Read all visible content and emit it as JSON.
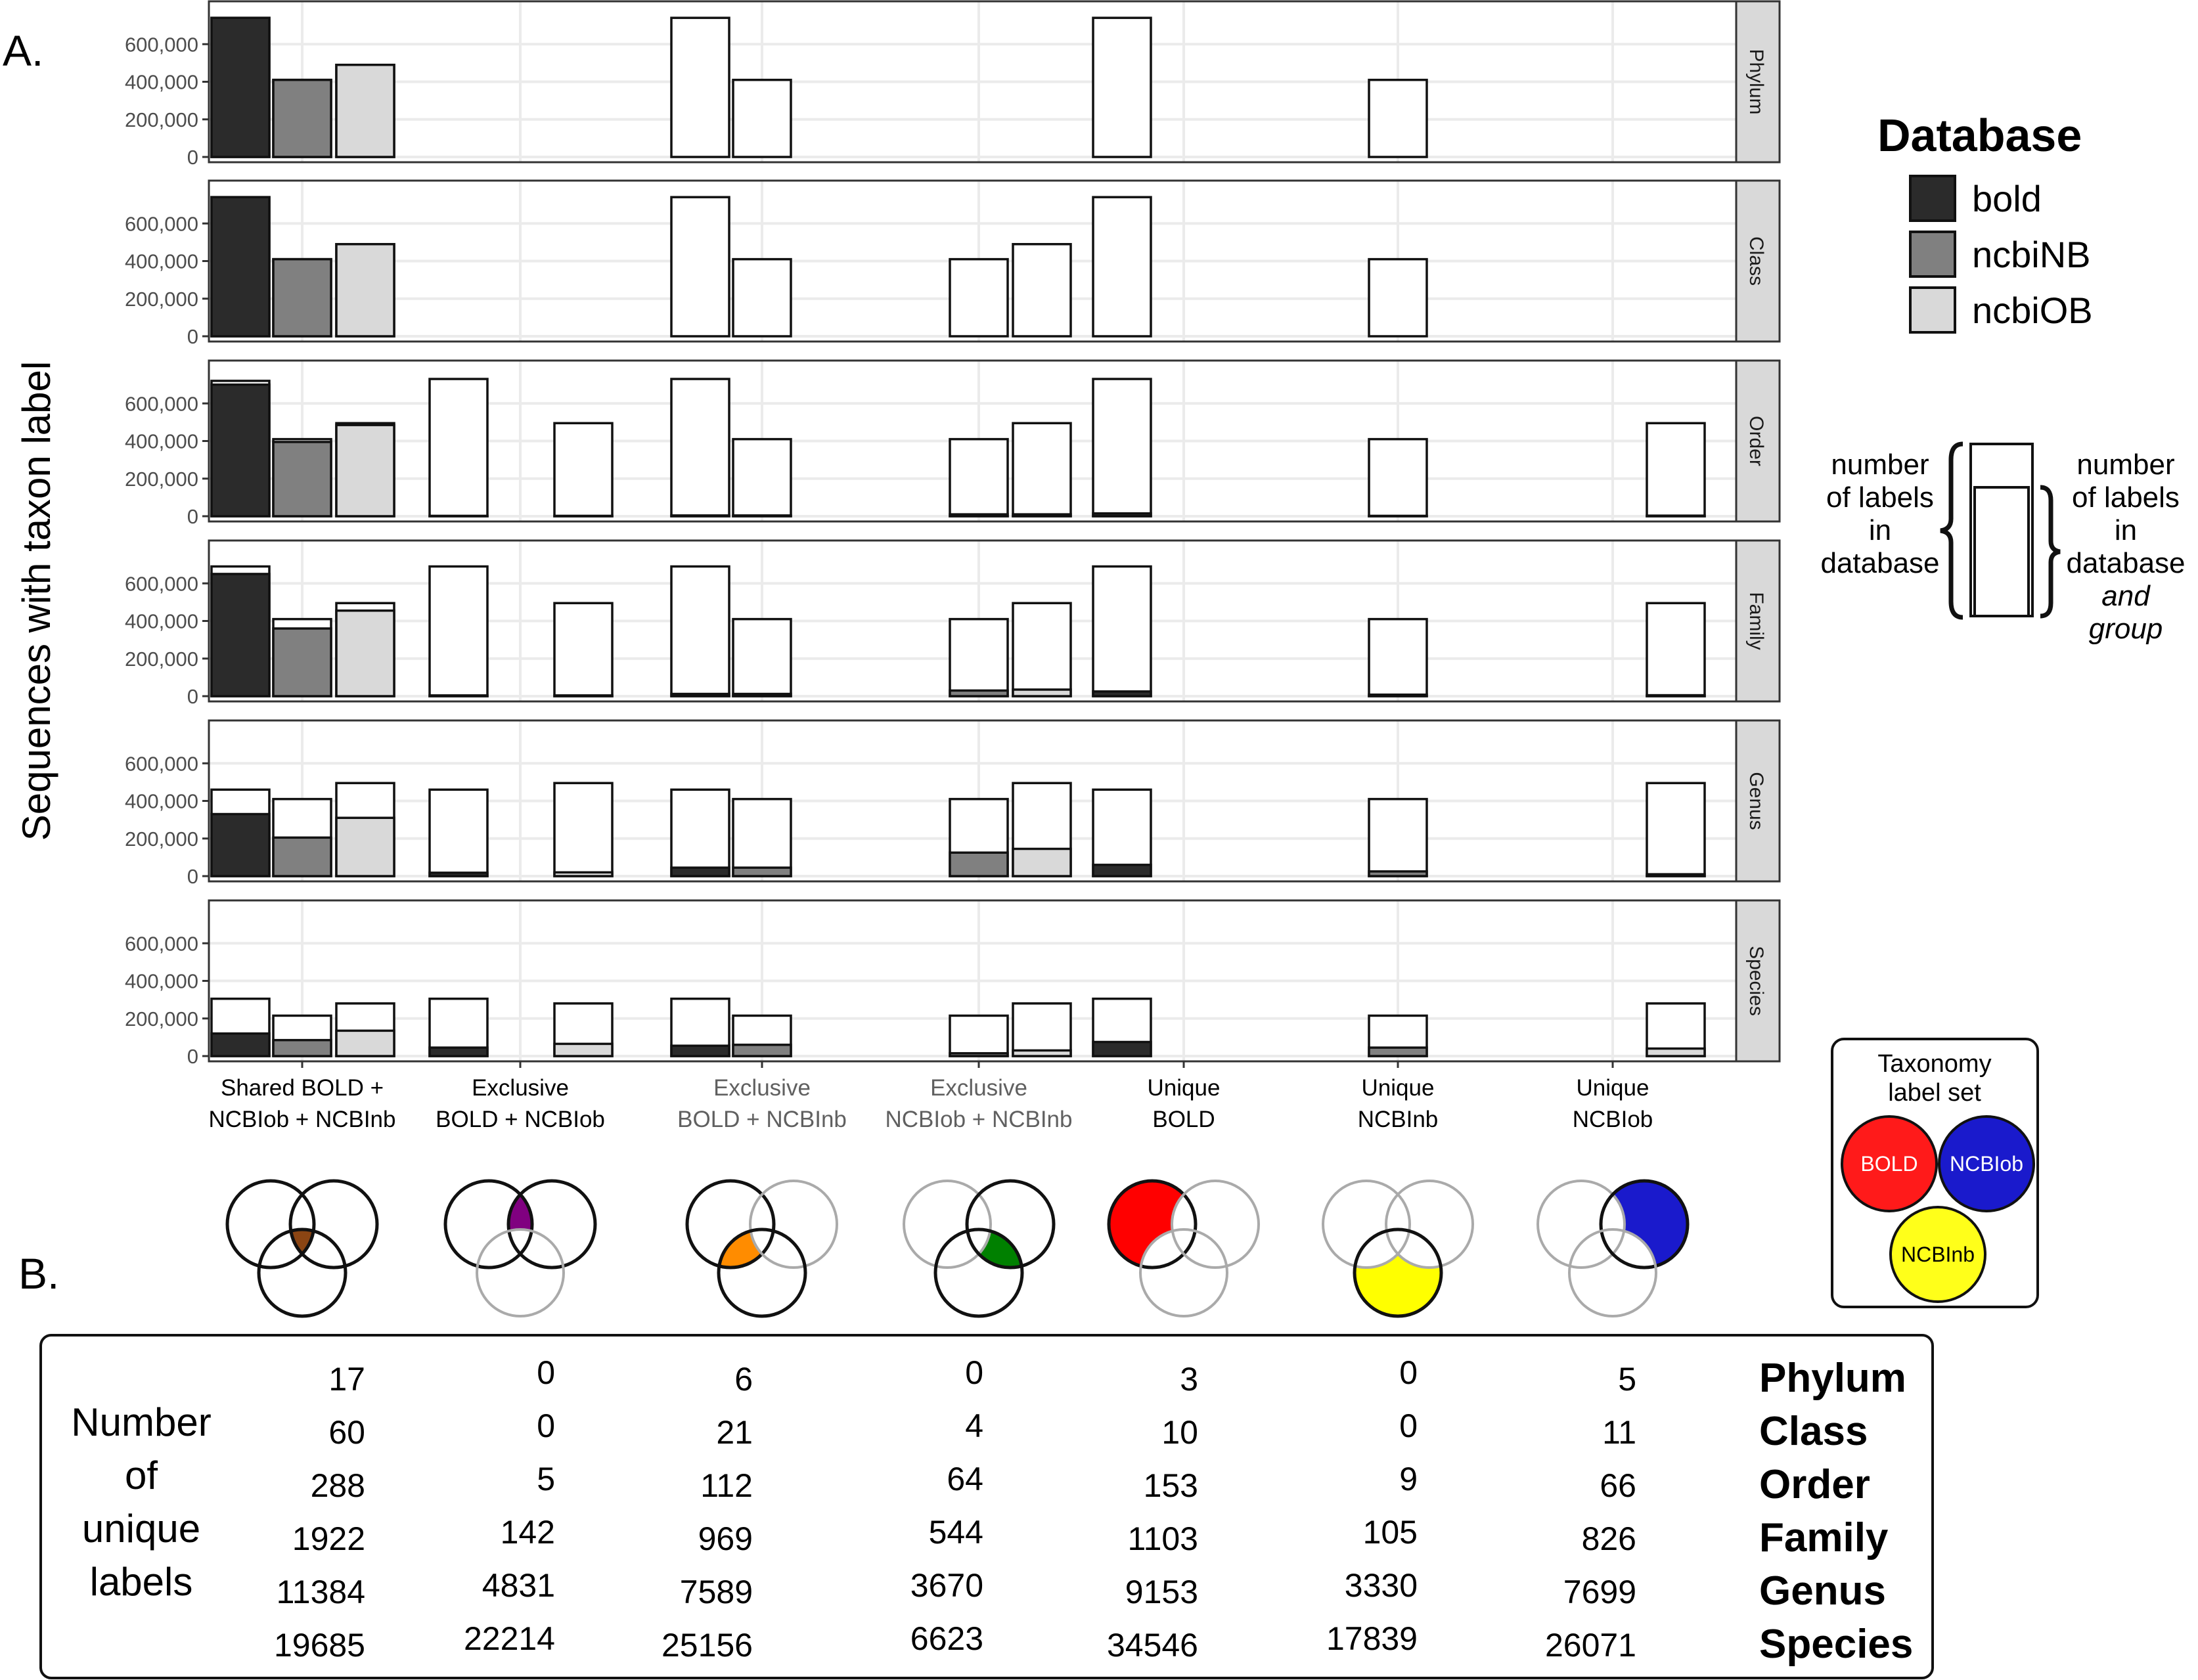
{
  "panel_labels": {
    "a": "A.",
    "b": "B."
  },
  "chart_data": {
    "type": "bar",
    "stacked": "overlay",
    "title": "",
    "ylabel": "Sequences with taxon label",
    "ylim": [
      0,
      800000
    ],
    "yticks": [
      0,
      200000,
      400000,
      600000
    ],
    "ytick_labels": [
      "0",
      "200,000",
      "400,000",
      "600,000"
    ],
    "grid": true,
    "legend": {
      "title": "Database",
      "placement": "right",
      "entries": [
        {
          "name": "bold",
          "color": "#2b2b2b"
        },
        {
          "name": "ncbiNB",
          "color": "#808080"
        },
        {
          "name": "ncbiOB",
          "color": "#d9d9d9"
        }
      ]
    },
    "groups": [
      [
        "Shared BOLD +",
        "NCBIob + NCBInb"
      ],
      [
        "Exclusive",
        "BOLD + NCBIob"
      ],
      [
        "Exclusive",
        "BOLD + NCBInb"
      ],
      [
        "Exclusive",
        "NCBIob + NCBInb"
      ],
      [
        "Unique",
        "BOLD"
      ],
      [
        "Unique",
        "NCBInb"
      ],
      [
        "Unique",
        "NCBIob"
      ]
    ],
    "group_label_colors": [
      "#000000",
      "#000000",
      "#606060",
      "#606060",
      "#000000",
      "#000000",
      "#000000"
    ],
    "ranks": [
      "Phylum",
      "Class",
      "Order",
      "Family",
      "Genus",
      "Species"
    ],
    "facets": [
      {
        "rank": "Phylum",
        "bars": [
          [
            0,
            "bold",
            740000,
            740000,
            true
          ],
          [
            0,
            "ncbiNB",
            410000,
            410000,
            true
          ],
          [
            0,
            "ncbiOB",
            490000,
            490000,
            true
          ],
          [
            2,
            "bold",
            740000,
            0,
            false
          ],
          [
            2,
            "ncbiNB",
            410000,
            0,
            false
          ],
          [
            4,
            "bold",
            740000,
            0,
            false
          ],
          [
            5,
            "ncbiNB",
            410000,
            0,
            false
          ]
        ]
      },
      {
        "rank": "Class",
        "bars": [
          [
            0,
            "bold",
            740000,
            740000,
            true
          ],
          [
            0,
            "ncbiNB",
            410000,
            410000,
            true
          ],
          [
            0,
            "ncbiOB",
            490000,
            490000,
            true
          ],
          [
            2,
            "bold",
            740000,
            0,
            false
          ],
          [
            2,
            "ncbiNB",
            410000,
            0,
            false
          ],
          [
            3,
            "ncbiNB",
            410000,
            0,
            false
          ],
          [
            3,
            "ncbiOB",
            490000,
            0,
            false
          ],
          [
            4,
            "bold",
            740000,
            0,
            false
          ],
          [
            5,
            "ncbiNB",
            410000,
            0,
            false
          ]
        ]
      },
      {
        "rank": "Order",
        "bars": [
          [
            0,
            "bold",
            720000,
            700000,
            true
          ],
          [
            0,
            "ncbiNB",
            410000,
            395000,
            true
          ],
          [
            0,
            "ncbiOB",
            495000,
            485000,
            true
          ],
          [
            1,
            "bold",
            730000,
            2000,
            false
          ],
          [
            1,
            "ncbiOB",
            495000,
            2000,
            false
          ],
          [
            2,
            "bold",
            730000,
            4000,
            false
          ],
          [
            2,
            "ncbiNB",
            410000,
            4000,
            false
          ],
          [
            3,
            "ncbiNB",
            410000,
            10000,
            false
          ],
          [
            3,
            "ncbiOB",
            495000,
            10000,
            false
          ],
          [
            4,
            "bold",
            730000,
            15000,
            false
          ],
          [
            5,
            "ncbiNB",
            410000,
            2000,
            false
          ],
          [
            6,
            "ncbiOB",
            495000,
            3000,
            false
          ]
        ]
      },
      {
        "rank": "Family",
        "bars": [
          [
            0,
            "bold",
            690000,
            650000,
            true
          ],
          [
            0,
            "ncbiNB",
            410000,
            360000,
            true
          ],
          [
            0,
            "ncbiOB",
            495000,
            455000,
            true
          ],
          [
            1,
            "bold",
            690000,
            4000,
            false
          ],
          [
            1,
            "ncbiOB",
            495000,
            4000,
            false
          ],
          [
            2,
            "bold",
            690000,
            12000,
            false
          ],
          [
            2,
            "ncbiNB",
            410000,
            12000,
            false
          ],
          [
            3,
            "ncbiNB",
            410000,
            30000,
            false
          ],
          [
            3,
            "ncbiOB",
            495000,
            35000,
            false
          ],
          [
            4,
            "bold",
            690000,
            25000,
            false
          ],
          [
            5,
            "ncbiNB",
            410000,
            8000,
            false
          ],
          [
            6,
            "ncbiOB",
            495000,
            5000,
            false
          ]
        ]
      },
      {
        "rank": "Genus",
        "bars": [
          [
            0,
            "bold",
            460000,
            330000,
            true
          ],
          [
            0,
            "ncbiNB",
            410000,
            205000,
            true
          ],
          [
            0,
            "ncbiOB",
            495000,
            310000,
            true
          ],
          [
            1,
            "bold",
            460000,
            18000,
            false
          ],
          [
            1,
            "ncbiOB",
            495000,
            20000,
            false
          ],
          [
            2,
            "bold",
            460000,
            45000,
            false
          ],
          [
            2,
            "ncbiNB",
            410000,
            45000,
            false
          ],
          [
            3,
            "ncbiNB",
            410000,
            125000,
            false
          ],
          [
            3,
            "ncbiOB",
            495000,
            145000,
            false
          ],
          [
            4,
            "bold",
            460000,
            60000,
            false
          ],
          [
            5,
            "ncbiNB",
            410000,
            25000,
            false
          ],
          [
            6,
            "ncbiOB",
            495000,
            10000,
            false
          ]
        ]
      },
      {
        "rank": "Species",
        "bars": [
          [
            0,
            "bold",
            305000,
            120000,
            true
          ],
          [
            0,
            "ncbiNB",
            215000,
            85000,
            true
          ],
          [
            0,
            "ncbiOB",
            280000,
            135000,
            true
          ],
          [
            1,
            "bold",
            305000,
            45000,
            false
          ],
          [
            1,
            "ncbiOB",
            280000,
            65000,
            false
          ],
          [
            2,
            "bold",
            305000,
            55000,
            false
          ],
          [
            2,
            "ncbiNB",
            215000,
            60000,
            false
          ],
          [
            3,
            "ncbiNB",
            215000,
            15000,
            false
          ],
          [
            3,
            "ncbiOB",
            280000,
            30000,
            false
          ],
          [
            4,
            "bold",
            305000,
            75000,
            false
          ],
          [
            5,
            "ncbiNB",
            215000,
            45000,
            false
          ],
          [
            6,
            "ncbiOB",
            280000,
            40000,
            false
          ]
        ]
      }
    ]
  },
  "bar_key": {
    "left": [
      "number",
      "of labels",
      "in",
      "database"
    ],
    "right": [
      "number",
      "of labels",
      "in",
      "database",
      "and",
      "group"
    ]
  },
  "venn_key": {
    "title": [
      "Taxonomy",
      "label set"
    ],
    "circles": [
      {
        "label": "BOLD",
        "color": "#ff1a1a"
      },
      {
        "label": "NCBIob",
        "color": "#1a1acc"
      },
      {
        "label": "NCBInb",
        "color": "#ffff1a"
      }
    ]
  },
  "venn_highlights": [
    {
      "region": "center",
      "color": "#8b4513"
    },
    {
      "region": "bold-ncbiob",
      "color": "#800080"
    },
    {
      "region": "bold-ncbinb",
      "color": "#ff8c00"
    },
    {
      "region": "ncbiob-ncbinb",
      "color": "#008000"
    },
    {
      "region": "bold-only",
      "color": "#ff0000"
    },
    {
      "region": "ncbinb-only",
      "color": "#ffff00"
    },
    {
      "region": "ncbiob-only",
      "color": "#1a1acc"
    }
  ],
  "table": {
    "row_title": [
      "Number",
      "of",
      "unique",
      "labels"
    ],
    "rows": [
      {
        "rank": "Phylum",
        "values": [
          "17",
          "0",
          "6",
          "0",
          "3",
          "0",
          "5"
        ]
      },
      {
        "rank": "Class",
        "values": [
          "60",
          "0",
          "21",
          "4",
          "10",
          "0",
          "11"
        ]
      },
      {
        "rank": "Order",
        "values": [
          "288",
          "5",
          "112",
          "64",
          "153",
          "9",
          "66"
        ]
      },
      {
        "rank": "Family",
        "values": [
          "1922",
          "142",
          "969",
          "544",
          "1103",
          "105",
          "826"
        ]
      },
      {
        "rank": "Genus",
        "values": [
          "11384",
          "4831",
          "7589",
          "3670",
          "9153",
          "3330",
          "7699"
        ]
      },
      {
        "rank": "Species",
        "values": [
          "19685",
          "22214",
          "25156",
          "6623",
          "34546",
          "17839",
          "26071"
        ]
      }
    ]
  }
}
